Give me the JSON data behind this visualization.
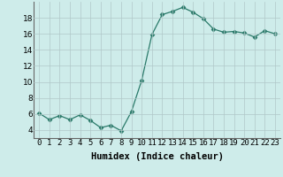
{
  "x": [
    0,
    1,
    2,
    3,
    4,
    5,
    6,
    7,
    8,
    9,
    10,
    11,
    12,
    13,
    14,
    15,
    16,
    17,
    18,
    19,
    20,
    21,
    22,
    23
  ],
  "y": [
    6.1,
    5.3,
    5.8,
    5.3,
    5.9,
    5.2,
    4.3,
    4.6,
    3.9,
    6.3,
    10.2,
    15.9,
    18.4,
    18.8,
    19.3,
    18.7,
    17.9,
    16.6,
    16.2,
    16.3,
    16.1,
    15.6,
    16.4,
    16.0
  ],
  "xlabel": "Humidex (Indice chaleur)",
  "line_color": "#2a7a6a",
  "marker": "D",
  "marker_size": 2.5,
  "bg_color": "#ceecea",
  "grid_color": "#b0c8c8",
  "xlim": [
    -0.5,
    23.5
  ],
  "ylim": [
    3,
    20
  ],
  "yticks": [
    4,
    6,
    8,
    10,
    12,
    14,
    16,
    18
  ],
  "xtick_labels": [
    "0",
    "1",
    "2",
    "3",
    "4",
    "5",
    "6",
    "7",
    "8",
    "9",
    "10",
    "11",
    "12",
    "13",
    "14",
    "15",
    "16",
    "17",
    "18",
    "19",
    "20",
    "21",
    "22",
    "23"
  ],
  "tick_fontsize": 6.5,
  "xlabel_fontsize": 7.5
}
